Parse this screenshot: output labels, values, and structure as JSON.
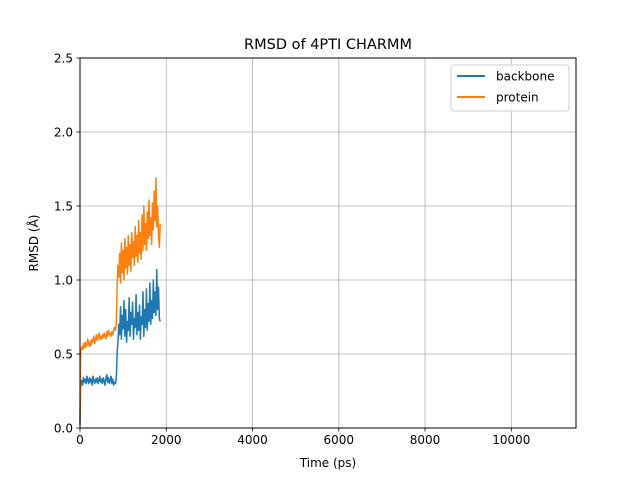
{
  "chart_data": {
    "type": "line",
    "title": "RMSD of 4PTI CHARMM",
    "xlabel": "Time (ps)",
    "ylabel": "RMSD (Å)",
    "xlim": [
      0,
      11500
    ],
    "ylim": [
      0,
      2.5
    ],
    "xticks": [
      0,
      2000,
      4000,
      6000,
      8000,
      10000
    ],
    "xtick_labels": [
      "0",
      "2000",
      "4000",
      "6000",
      "8000",
      "10000"
    ],
    "yticks": [
      0,
      0.5,
      1.0,
      1.5,
      2.0,
      2.5
    ],
    "ytick_labels": [
      "0.0",
      "0.5",
      "1.0",
      "1.5",
      "2.0",
      "2.5"
    ],
    "grid": true,
    "legend_position": "upper right",
    "series": [
      {
        "name": "backbone",
        "color": "#1f77b4",
        "x": [
          0,
          10,
          20,
          40,
          60,
          80,
          100,
          120,
          140,
          160,
          180,
          200,
          220,
          240,
          260,
          280,
          300,
          320,
          340,
          360,
          380,
          400,
          420,
          440,
          460,
          480,
          500,
          520,
          540,
          560,
          580,
          600,
          620,
          640,
          660,
          680,
          700,
          720,
          740,
          760,
          780,
          800,
          820,
          840,
          850,
          860,
          880,
          900,
          920,
          940,
          960,
          980,
          1000,
          1020,
          1040,
          1060,
          1080,
          1100,
          1120,
          1140,
          1160,
          1180,
          1200,
          1220,
          1240,
          1260,
          1280,
          1300,
          1320,
          1340,
          1360,
          1380,
          1400,
          1420,
          1440,
          1460,
          1480,
          1500,
          1520,
          1540,
          1560,
          1580,
          1600,
          1620,
          1640,
          1660,
          1680,
          1700,
          1720,
          1740,
          1760,
          1780,
          1800,
          1820,
          1840,
          1860
        ],
        "values": [
          0.02,
          0.26,
          0.3,
          0.32,
          0.29,
          0.34,
          0.31,
          0.33,
          0.3,
          0.35,
          0.32,
          0.3,
          0.34,
          0.31,
          0.33,
          0.29,
          0.35,
          0.32,
          0.3,
          0.33,
          0.31,
          0.34,
          0.3,
          0.32,
          0.35,
          0.31,
          0.33,
          0.3,
          0.34,
          0.32,
          0.29,
          0.33,
          0.36,
          0.31,
          0.34,
          0.3,
          0.32,
          0.35,
          0.3,
          0.33,
          0.29,
          0.31,
          0.3,
          0.33,
          0.4,
          0.5,
          0.58,
          0.7,
          0.63,
          0.82,
          0.6,
          0.76,
          0.67,
          0.86,
          0.62,
          0.8,
          0.58,
          0.72,
          0.66,
          0.88,
          0.62,
          0.78,
          0.7,
          0.85,
          0.6,
          0.74,
          0.68,
          0.9,
          0.63,
          0.78,
          0.66,
          0.83,
          0.6,
          0.75,
          0.7,
          0.92,
          0.62,
          0.8,
          0.68,
          0.94,
          0.66,
          0.84,
          0.72,
          0.98,
          0.7,
          0.86,
          0.74,
          1.0,
          0.78,
          0.92,
          0.76,
          1.07,
          0.8,
          0.95,
          0.74,
          0.72
        ]
      },
      {
        "name": "protein",
        "color": "#ff7f0e",
        "x": [
          0,
          10,
          20,
          40,
          60,
          80,
          100,
          120,
          140,
          160,
          180,
          200,
          220,
          240,
          260,
          280,
          300,
          320,
          340,
          360,
          380,
          400,
          420,
          440,
          460,
          480,
          500,
          520,
          540,
          560,
          580,
          600,
          620,
          640,
          660,
          680,
          700,
          720,
          740,
          760,
          780,
          800,
          820,
          840,
          850,
          860,
          880,
          900,
          920,
          940,
          960,
          980,
          1000,
          1020,
          1040,
          1060,
          1080,
          1100,
          1120,
          1140,
          1160,
          1180,
          1200,
          1220,
          1240,
          1260,
          1280,
          1300,
          1320,
          1340,
          1360,
          1380,
          1400,
          1420,
          1440,
          1460,
          1480,
          1500,
          1520,
          1540,
          1560,
          1580,
          1600,
          1620,
          1640,
          1660,
          1680,
          1700,
          1720,
          1740,
          1760,
          1780,
          1800,
          1820,
          1840,
          1860
        ],
        "values": [
          0.05,
          0.46,
          0.52,
          0.55,
          0.53,
          0.57,
          0.54,
          0.58,
          0.55,
          0.56,
          0.6,
          0.57,
          0.55,
          0.59,
          0.56,
          0.6,
          0.58,
          0.62,
          0.57,
          0.6,
          0.63,
          0.59,
          0.61,
          0.64,
          0.6,
          0.62,
          0.6,
          0.63,
          0.61,
          0.64,
          0.62,
          0.6,
          0.65,
          0.62,
          0.66,
          0.63,
          0.64,
          0.62,
          0.65,
          0.63,
          0.66,
          0.68,
          0.66,
          0.7,
          0.8,
          0.95,
          1.1,
          1.02,
          1.18,
          0.98,
          1.25,
          1.05,
          1.2,
          1.0,
          1.28,
          1.08,
          1.22,
          1.04,
          1.3,
          1.1,
          1.24,
          1.06,
          1.32,
          1.15,
          1.26,
          1.1,
          1.36,
          1.16,
          1.3,
          1.12,
          1.4,
          1.18,
          1.32,
          1.14,
          1.44,
          1.2,
          1.5,
          1.24,
          1.38,
          1.2,
          1.46,
          1.28,
          1.54,
          1.3,
          1.42,
          1.24,
          1.52,
          1.34,
          1.6,
          1.4,
          1.69,
          1.36,
          1.5,
          1.3,
          1.22,
          1.38
        ]
      }
    ]
  }
}
